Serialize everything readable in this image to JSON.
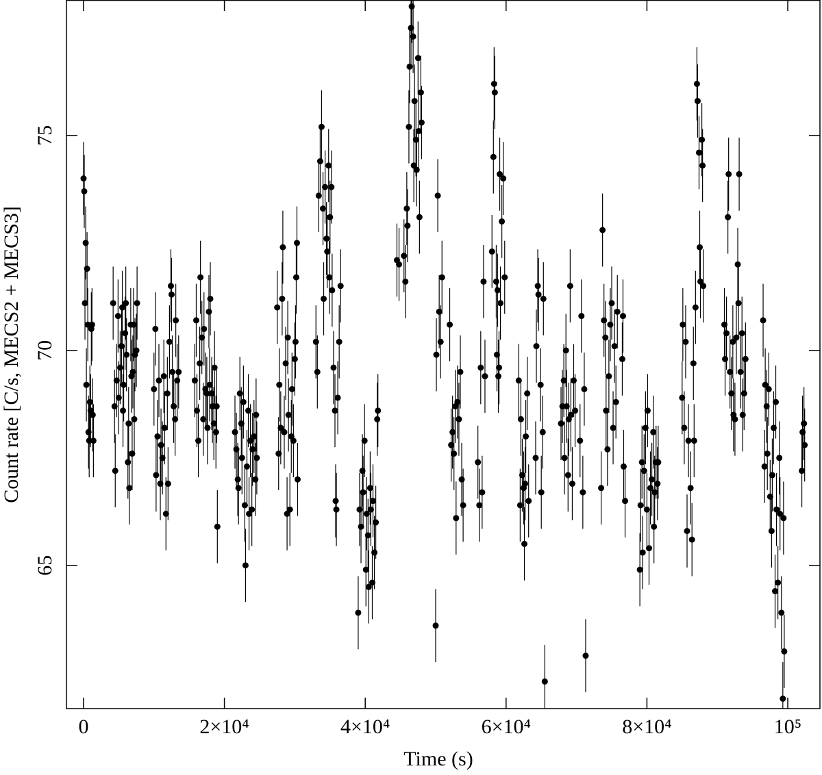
{
  "chart_data": {
    "type": "scatter",
    "xlabel": "Time (s)",
    "ylabel": "Count rate [C/s, MECS2 + MECS3]",
    "xlim": [
      -2430,
      104570
    ],
    "ylim": [
      61.67,
      78.15
    ],
    "xticks": [
      0,
      {
        "value": 20000,
        "label": "2×10⁴"
      },
      {
        "value": 40000,
        "label": "4×10⁴"
      },
      {
        "value": 60000,
        "label": "6×10⁴"
      },
      {
        "value": 80000,
        "label": "8×10⁴"
      },
      {
        "value": 100000,
        "label": "10⁵"
      }
    ],
    "yticks": [
      65,
      70,
      75
    ],
    "series": [
      {
        "color": "#000000",
        "yerr": 0.85,
        "x": [
          0,
          100,
          200,
          300,
          400,
          500,
          600,
          700,
          800,
          900,
          1000,
          1100,
          1200,
          1300,
          1400,
          4200,
          4400,
          4500,
          4700,
          4900,
          5000,
          5200,
          5400,
          5500,
          5600,
          5700,
          5900,
          6000,
          6100,
          6300,
          6400,
          6500,
          6700,
          6800,
          6900,
          7000,
          7100,
          7200,
          7300,
          7500,
          7600,
          10000,
          10200,
          10300,
          10500,
          10700,
          10900,
          11000,
          11200,
          11400,
          11500,
          11700,
          11900,
          12000,
          12200,
          12400,
          12500,
          12600,
          12800,
          13000,
          13100,
          13300,
          13500,
          15800,
          16000,
          16100,
          16300,
          16500,
          16600,
          16800,
          17000,
          17100,
          17300,
          17500,
          17600,
          17800,
          17900,
          18000,
          18200,
          18300,
          18500,
          18600,
          18800,
          18900,
          19000,
          21500,
          21700,
          21900,
          22000,
          22200,
          22400,
          22500,
          22700,
          22900,
          23000,
          23200,
          23400,
          23500,
          23700,
          23900,
          24000,
          24200,
          24400,
          24500,
          24600,
          27500,
          27700,
          27800,
          28000,
          28200,
          28300,
          28500,
          28700,
          28900,
          29000,
          29100,
          29300,
          29500,
          29600,
          29800,
          30000,
          30100,
          30200,
          30300,
          30400,
          33000,
          33200,
          33400,
          33600,
          33800,
          34000,
          34100,
          34300,
          34500,
          34600,
          34800,
          34900,
          35000,
          35200,
          35300,
          35500,
          35700,
          35800,
          35900,
          36100,
          36300,
          36500,
          39000,
          39200,
          39400,
          39600,
          39700,
          39900,
          40100,
          40200,
          40400,
          40500,
          40700,
          40800,
          41000,
          41100,
          41300,
          41500,
          41700,
          41800,
          44500,
          44800,
          45500,
          45700,
          45900,
          46000,
          46200,
          46300,
          46500,
          46600,
          46800,
          46900,
          47000,
          47200,
          47300,
          47500,
          47600,
          47700,
          47900,
          48000,
          50000,
          50100,
          50300,
          50500,
          50700,
          50900,
          52000,
          52200,
          52400,
          52600,
          52800,
          52900,
          53100,
          53300,
          53500,
          53700,
          53900,
          56000,
          56200,
          56400,
          56600,
          56800,
          57000,
          58000,
          58200,
          58300,
          58400,
          58600,
          58700,
          58800,
          58900,
          59000,
          59100,
          59200,
          59400,
          59600,
          59800,
          61800,
          62000,
          62100,
          62300,
          62500,
          62600,
          62700,
          62800,
          63000,
          63200,
          64200,
          64300,
          64500,
          64600,
          64900,
          65000,
          65200,
          65300,
          65500,
          67800,
          68000,
          68200,
          68300,
          68500,
          68600,
          68800,
          68900,
          69100,
          69200,
          69400,
          69600,
          69800,
          70500,
          70700,
          70900,
          71100,
          71300,
          73500,
          73700,
          73900,
          74100,
          74200,
          74400,
          74600,
          74800,
          75000,
          75200,
          75400,
          75600,
          75800,
          76500,
          76600,
          76700,
          76900,
          79000,
          79100,
          79300,
          79400,
          79600,
          79800,
          80000,
          80100,
          80300,
          80500,
          80700,
          80900,
          81000,
          81100,
          81300,
          81500,
          81600,
          85000,
          85100,
          85300,
          85500,
          85700,
          85900,
          86200,
          86400,
          86600,
          86700,
          86900,
          87100,
          87200,
          87400,
          87500,
          87600,
          87800,
          87900,
          88000,
          91000,
          91100,
          91300,
          91500,
          91600,
          91800,
          92000,
          92200,
          92300,
          92500,
          92700,
          92900,
          93000,
          93100,
          93300,
          93500,
          93600,
          93800,
          94000,
          96500,
          96700,
          96800,
          97000,
          97100,
          97300,
          97500,
          97700,
          97800,
          98000,
          98200,
          98300,
          98400,
          98600,
          98800,
          98900,
          99100,
          99300,
          99400,
          99500,
          102000,
          102100,
          102300,
          102400
        ],
        "values": [
          74.0,
          73.7,
          71.1,
          72.5,
          69.2,
          71.9,
          70.6,
          68.1,
          67.9,
          68.8,
          68.6,
          70.5,
          70.6,
          68.5,
          67.9,
          71.1,
          68.7,
          67.2,
          69.3,
          70.8,
          68.9,
          69.6,
          70.1,
          71.0,
          68.6,
          69.2,
          70.4,
          71.1,
          69.9,
          67.4,
          68.3,
          66.8,
          70.6,
          69.4,
          67.6,
          69.5,
          70.6,
          68.4,
          69.9,
          70.0,
          71.1,
          69.1,
          70.5,
          67.1,
          68.0,
          69.3,
          66.9,
          67.8,
          67.5,
          69.4,
          68.2,
          66.2,
          69.0,
          66.9,
          70.2,
          71.5,
          71.3,
          69.5,
          68.7,
          68.4,
          70.7,
          69.3,
          69.5,
          69.3,
          70.7,
          68.6,
          67.9,
          69.7,
          71.7,
          70.3,
          68.4,
          70.5,
          69.1,
          69.0,
          68.2,
          70.9,
          69.2,
          71.2,
          69.0,
          68.7,
          68.3,
          69.6,
          68.1,
          68.7,
          65.9,
          68.1,
          67.7,
          67.0,
          66.8,
          69.0,
          68.3,
          67.5,
          68.8,
          66.4,
          65.0,
          67.3,
          68.6,
          66.2,
          67.9,
          66.3,
          67.7,
          68.0,
          67.0,
          68.5,
          67.5,
          71.0,
          67.6,
          69.2,
          68.2,
          71.2,
          72.4,
          68.1,
          69.7,
          66.2,
          70.3,
          68.5,
          66.3,
          68.0,
          69.1,
          67.9,
          69.8,
          70.2,
          71.7,
          72.5,
          67.0,
          70.2,
          69.5,
          73.6,
          74.4,
          75.2,
          73.3,
          71.2,
          73.8,
          72.6,
          72.3,
          74.3,
          71.7,
          73.1,
          73.8,
          71.4,
          69.6,
          68.6,
          66.5,
          66.3,
          68.9,
          70.2,
          71.5,
          63.9,
          66.3,
          65.9,
          67.2,
          66.7,
          67.9,
          64.9,
          66.2,
          65.7,
          64.5,
          66.8,
          66.3,
          64.6,
          66.5,
          65.3,
          66.0,
          68.4,
          68.6,
          72.1,
          72.0,
          72.2,
          71.6,
          73.3,
          72.9,
          75.2,
          76.6,
          77.5,
          78.0,
          77.3,
          74.3,
          75.8,
          74.9,
          74.2,
          76.8,
          75.1,
          73.1,
          76.0,
          75.3,
          63.6,
          69.9,
          73.6,
          70.9,
          70.2,
          71.7,
          70.6,
          67.8,
          68.1,
          67.6,
          68.7,
          66.1,
          68.8,
          68.4,
          69.5,
          67.0,
          66.4,
          67.4,
          66.4,
          69.6,
          66.7,
          71.6,
          69.4,
          72.3,
          74.5,
          76.2,
          76.0,
          71.6,
          69.9,
          71.4,
          69.4,
          69.6,
          74.1,
          71.1,
          73.0,
          74.0,
          71.7,
          69.3,
          66.4,
          68.4,
          67.1,
          66.8,
          65.5,
          66.9,
          68.0,
          69.0,
          66.5,
          67.5,
          70.1,
          71.5,
          71.3,
          69.2,
          66.7,
          68.1,
          71.2,
          62.3,
          68.3,
          68.7,
          69.3,
          67.5,
          70.0,
          68.7,
          67.1,
          68.4,
          71.5,
          68.5,
          66.9,
          69.3,
          68.6,
          67.9,
          70.8,
          66.7,
          69.1,
          62.9,
          66.8,
          72.8,
          70.7,
          70.3,
          68.6,
          67.7,
          69.4,
          70.6,
          71.1,
          68.2,
          70.1,
          68.8,
          70.9,
          69.8,
          70.8,
          67.3,
          66.5,
          64.9,
          66.4,
          67.4,
          65.3,
          67.2,
          68.2,
          66.3,
          68.6,
          65.4,
          66.8,
          67.0,
          68.1,
          65.9,
          66.7,
          67.4,
          66.9,
          67.4,
          68.9,
          70.6,
          68.2,
          70.2,
          65.8,
          67.9,
          66.8,
          65.6,
          69.7,
          67.9,
          71.0,
          76.2,
          75.8,
          74.6,
          72.4,
          71.6,
          74.9,
          74.3,
          71.5,
          70.6,
          69.8,
          70.4,
          73.1,
          74.1,
          69.5,
          69.0,
          70.2,
          68.5,
          68.4,
          70.3,
          72.0,
          71.1,
          74.1,
          69.5,
          70.4,
          68.5,
          69.0,
          69.8,
          70.7,
          67.3,
          69.2,
          68.7,
          67.6,
          69.1,
          66.6,
          65.8,
          67.1,
          68.2,
          64.4,
          68.8,
          66.3,
          64.6,
          67.5,
          66.2,
          63.9,
          61.9,
          66.1,
          63.0,
          67.2,
          68.1,
          68.3,
          67.8
        ]
      }
    ]
  }
}
